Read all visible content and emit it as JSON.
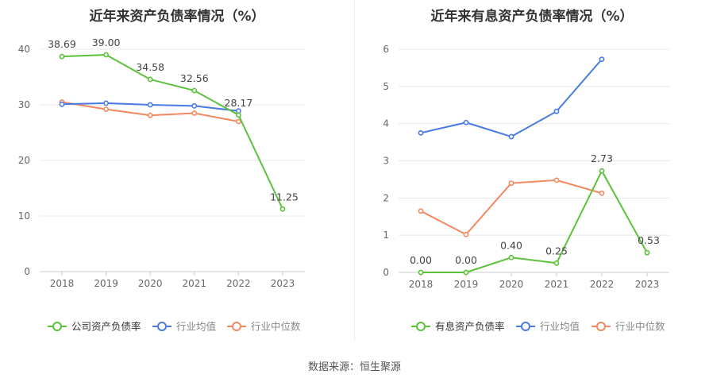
{
  "source": "数据来源：恒生聚源",
  "chart_data": [
    {
      "type": "line",
      "title": "近年来资产负债率情况（%）",
      "x": [
        "2018",
        "2019",
        "2020",
        "2021",
        "2022",
        "2023"
      ],
      "ylim": [
        0,
        40
      ],
      "yticks": [
        0,
        10,
        20,
        30,
        40
      ],
      "grid": true,
      "legend_position": "bottom",
      "series": [
        {
          "name": "公司资产负债率",
          "color": "#5cc23b",
          "values": [
            38.69,
            39.0,
            34.58,
            32.56,
            28.17,
            11.25
          ],
          "labels": [
            "38.69",
            "39.00",
            "34.58",
            "32.56",
            "28.17",
            "11.25"
          ]
        },
        {
          "name": "行业均值",
          "color": "#4a7be5",
          "values": [
            30.1,
            30.3,
            30.0,
            29.8,
            28.9,
            null
          ]
        },
        {
          "name": "行业中位数",
          "color": "#f4895f",
          "values": [
            30.5,
            29.2,
            28.1,
            28.5,
            27.0,
            null
          ]
        }
      ]
    },
    {
      "type": "line",
      "title": "近年来有息资产负债率情况（%）",
      "x": [
        "2018",
        "2019",
        "2020",
        "2021",
        "2022",
        "2023"
      ],
      "ylim": [
        0,
        6
      ],
      "yticks": [
        0,
        1,
        2,
        3,
        4,
        5,
        6
      ],
      "grid": true,
      "legend_position": "bottom",
      "series": [
        {
          "name": "有息资产负债率",
          "color": "#5cc23b",
          "values": [
            0.0,
            0.0,
            0.4,
            0.25,
            2.73,
            0.53
          ],
          "labels": [
            "0.00",
            "0.00",
            "0.40",
            "0.25",
            "2.73",
            "0.53"
          ]
        },
        {
          "name": "行业均值",
          "color": "#4a7be5",
          "values": [
            3.75,
            4.03,
            3.65,
            4.33,
            5.73,
            null
          ]
        },
        {
          "name": "行业中位数",
          "color": "#f4895f",
          "values": [
            1.65,
            1.02,
            2.4,
            2.48,
            2.13,
            null
          ]
        }
      ]
    }
  ]
}
